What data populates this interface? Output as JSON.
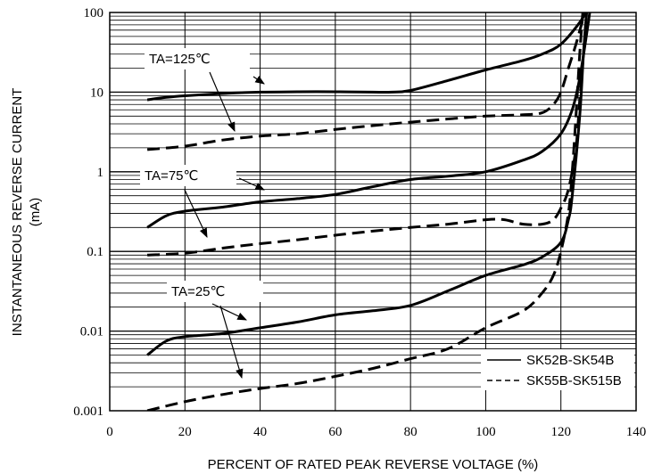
{
  "chart_data": {
    "type": "line",
    "xlabel": "PERCENT OF RATED PEAK REVERSE VOLTAGE (%)",
    "ylabel_line1": "INSTANTANEOUS REVERSE CURRENT",
    "ylabel_line2": "(mA)",
    "xlim": [
      0,
      140
    ],
    "ylim": [
      0.001,
      100
    ],
    "yscale": "log",
    "grid": true,
    "x_ticks": [
      0,
      20,
      40,
      60,
      80,
      100,
      120,
      140
    ],
    "x_tick_labels": [
      "0",
      "20",
      "40",
      "60",
      "80",
      "100",
      "120",
      "140"
    ],
    "y_ticks": [
      0.001,
      0.01,
      0.1,
      1,
      10,
      100
    ],
    "y_tick_labels": [
      "0.001",
      "0.01",
      "0.1",
      "1",
      "10",
      "100"
    ],
    "legend": {
      "position": "bottom-right",
      "entries": [
        {
          "label": "SK52B-SK54B",
          "style": "solid"
        },
        {
          "label": "SK55B-SK515B",
          "style": "dashed"
        }
      ]
    },
    "annotations": [
      {
        "text": "TA=125℃"
      },
      {
        "text": "TA=75℃"
      },
      {
        "text": "TA=25℃"
      }
    ],
    "series": [
      {
        "group": "SK52B-SK54B",
        "temperature": "TA=125℃",
        "style": "solid",
        "points": [
          [
            10,
            8
          ],
          [
            15,
            8.6
          ],
          [
            20,
            9
          ],
          [
            30,
            9.6
          ],
          [
            40,
            10
          ],
          [
            50,
            10.1
          ],
          [
            60,
            10.1
          ],
          [
            70,
            10
          ],
          [
            75,
            10
          ],
          [
            80,
            10.5
          ],
          [
            90,
            14
          ],
          [
            100,
            19
          ],
          [
            110,
            25
          ],
          [
            115,
            30
          ],
          [
            120,
            40
          ],
          [
            125,
            75
          ],
          [
            128,
            130
          ]
        ]
      },
      {
        "group": "SK55B-SK515B",
        "temperature": "TA=125℃",
        "style": "dashed",
        "points": [
          [
            10,
            1.9
          ],
          [
            20,
            2.1
          ],
          [
            30,
            2.5
          ],
          [
            40,
            2.8
          ],
          [
            50,
            3.0
          ],
          [
            60,
            3.4
          ],
          [
            70,
            3.8
          ],
          [
            80,
            4.2
          ],
          [
            90,
            4.6
          ],
          [
            100,
            5.0
          ],
          [
            110,
            5.2
          ],
          [
            115,
            5.5
          ],
          [
            118,
            7
          ],
          [
            120,
            10
          ],
          [
            122,
            20
          ],
          [
            124,
            40
          ],
          [
            127,
            130
          ]
        ]
      },
      {
        "group": "SK52B-SK54B",
        "temperature": "TA=75℃",
        "style": "solid",
        "points": [
          [
            10,
            0.2
          ],
          [
            15,
            0.28
          ],
          [
            20,
            0.32
          ],
          [
            30,
            0.36
          ],
          [
            40,
            0.42
          ],
          [
            50,
            0.46
          ],
          [
            60,
            0.52
          ],
          [
            70,
            0.65
          ],
          [
            80,
            0.8
          ],
          [
            90,
            0.88
          ],
          [
            100,
            1.0
          ],
          [
            110,
            1.4
          ],
          [
            115,
            1.8
          ],
          [
            120,
            3
          ],
          [
            123,
            6
          ],
          [
            125,
            15
          ],
          [
            127,
            60
          ],
          [
            128,
            130
          ]
        ]
      },
      {
        "group": "SK55B-SK515B",
        "temperature": "TA=75℃",
        "style": "dashed",
        "points": [
          [
            10,
            0.09
          ],
          [
            20,
            0.095
          ],
          [
            30,
            0.11
          ],
          [
            40,
            0.125
          ],
          [
            50,
            0.14
          ],
          [
            60,
            0.16
          ],
          [
            70,
            0.18
          ],
          [
            80,
            0.2
          ],
          [
            90,
            0.22
          ],
          [
            100,
            0.25
          ],
          [
            105,
            0.25
          ],
          [
            110,
            0.22
          ],
          [
            115,
            0.22
          ],
          [
            118,
            0.25
          ],
          [
            120,
            0.35
          ],
          [
            122,
            0.6
          ],
          [
            124,
            2
          ],
          [
            125,
            8
          ],
          [
            126,
            30
          ],
          [
            127,
            130
          ]
        ]
      },
      {
        "group": "SK52B-SK54B",
        "temperature": "TA=25℃",
        "style": "solid",
        "points": [
          [
            10,
            0.005
          ],
          [
            15,
            0.0075
          ],
          [
            20,
            0.0085
          ],
          [
            30,
            0.0093
          ],
          [
            40,
            0.011
          ],
          [
            50,
            0.013
          ],
          [
            60,
            0.016
          ],
          [
            70,
            0.018
          ],
          [
            80,
            0.021
          ],
          [
            90,
            0.032
          ],
          [
            100,
            0.05
          ],
          [
            110,
            0.068
          ],
          [
            115,
            0.085
          ],
          [
            120,
            0.13
          ],
          [
            122,
            0.25
          ],
          [
            123,
            0.5
          ],
          [
            125,
            5
          ],
          [
            126,
            30
          ],
          [
            127,
            130
          ]
        ]
      },
      {
        "group": "SK55B-SK515B",
        "temperature": "TA=25℃",
        "style": "dashed",
        "points": [
          [
            10,
            0.001
          ],
          [
            20,
            0.0013
          ],
          [
            30,
            0.0016
          ],
          [
            40,
            0.0019
          ],
          [
            50,
            0.0022
          ],
          [
            60,
            0.0027
          ],
          [
            70,
            0.0034
          ],
          [
            80,
            0.0045
          ],
          [
            90,
            0.006
          ],
          [
            100,
            0.011
          ],
          [
            110,
            0.018
          ],
          [
            115,
            0.03
          ],
          [
            118,
            0.05
          ],
          [
            120,
            0.1
          ],
          [
            122,
            0.3
          ],
          [
            123,
            1
          ],
          [
            124,
            5
          ],
          [
            125,
            30
          ],
          [
            126,
            130
          ]
        ]
      }
    ]
  }
}
